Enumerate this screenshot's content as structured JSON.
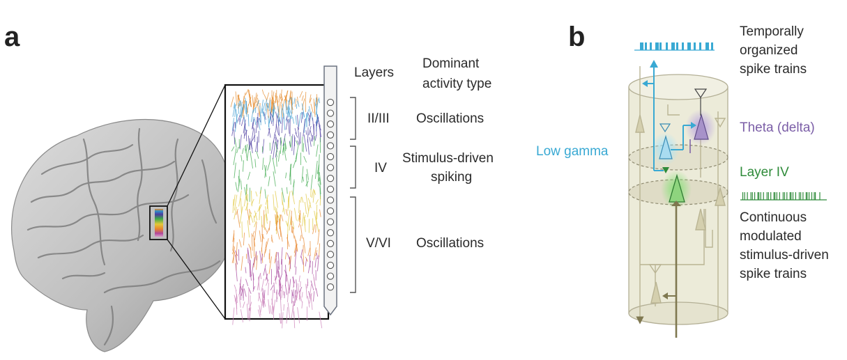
{
  "panel_a": {
    "label": "a",
    "header_layers": "Layers",
    "header_activity_line1": "Dominant",
    "header_activity_line2": "activity type",
    "rows": [
      {
        "layer": "II/III",
        "activity_line1": "Oscillations",
        "activity_line2": ""
      },
      {
        "layer": "IV",
        "activity_line1": "Stimulus-driven",
        "activity_line2": "spiking"
      },
      {
        "layer": "V/VI",
        "activity_line1": "Oscillations",
        "activity_line2": ""
      }
    ]
  },
  "panel_b": {
    "label": "b",
    "top_right_line1": "Temporally",
    "top_right_line2": "organized",
    "top_right_line3": "spike trains",
    "theta_label": "Theta (delta)",
    "low_gamma_label": "Low gamma",
    "layer_iv_label": "Layer IV",
    "bottom_right_line1": "Continuous",
    "bottom_right_line2": "modulated",
    "bottom_right_line3": "stimulus-driven",
    "bottom_right_line4": "spike trains"
  },
  "colors": {
    "cyan": "#39a9d3",
    "purple": "#7b5ea7",
    "green": "#2f8b3a",
    "column": "#e8e6d3",
    "column_stroke": "#a9a58c",
    "olive": "#7f7850"
  }
}
